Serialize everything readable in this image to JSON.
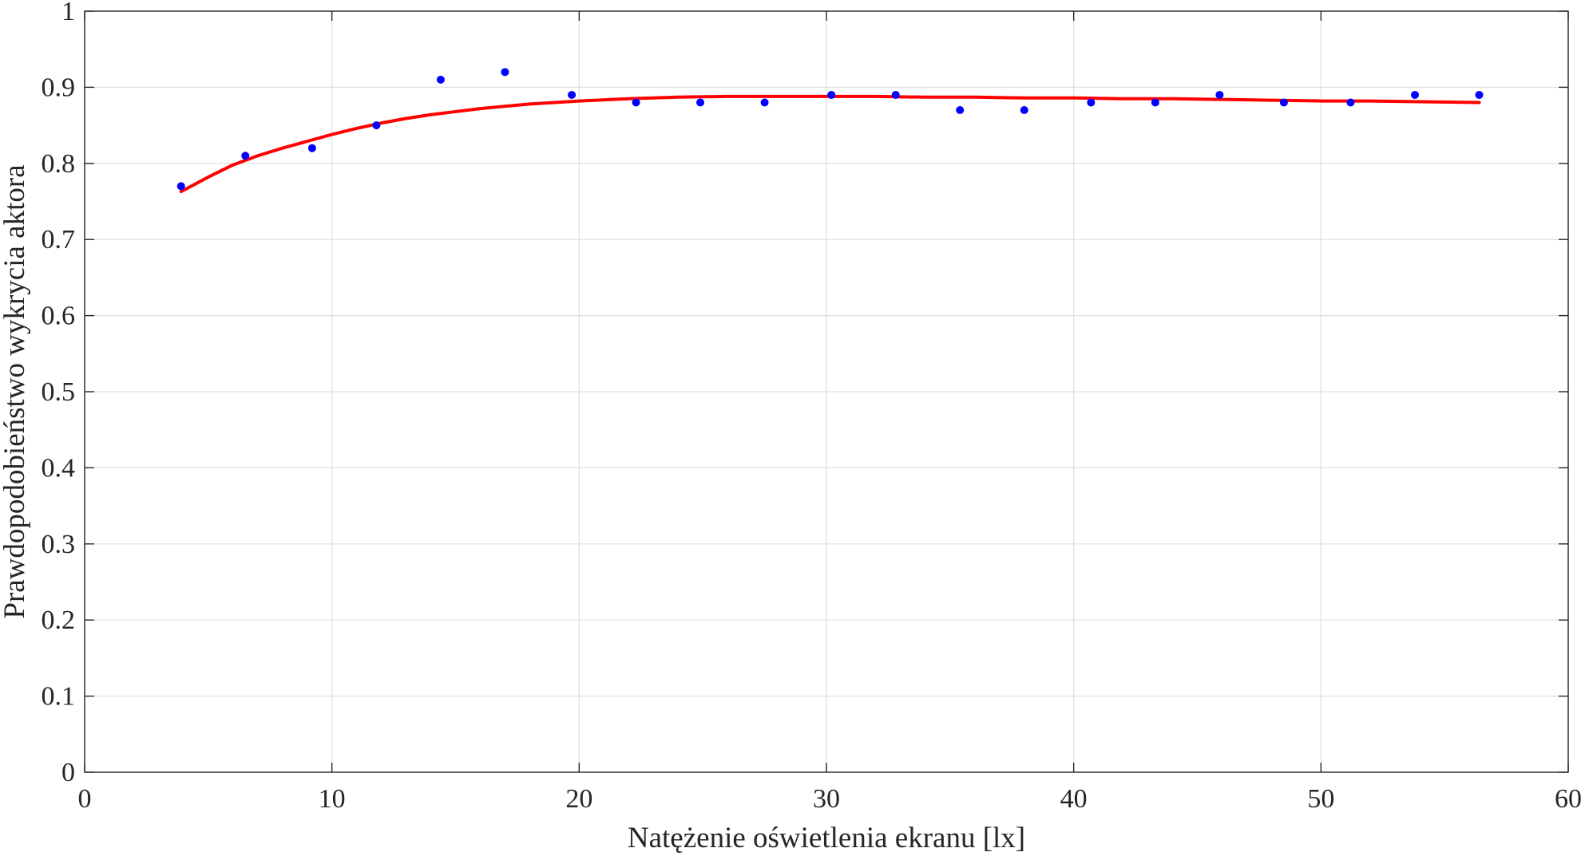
{
  "chart_data": {
    "type": "scatter",
    "title": "",
    "xlabel": "Natężenie oświetlenia ekranu [lx]",
    "ylabel": "Prawdopodobieństwo wykrycia aktora",
    "xlim": [
      0,
      60
    ],
    "ylim": [
      0,
      1
    ],
    "x_ticks": [
      "0",
      "10",
      "20",
      "30",
      "40",
      "50",
      "60"
    ],
    "y_ticks": [
      "0",
      "0.1",
      "0.2",
      "0.3",
      "0.4",
      "0.5",
      "0.6",
      "0.7",
      "0.8",
      "0.9",
      "1"
    ],
    "grid": true,
    "series": [
      {
        "kind": "points",
        "color": "#0000ff",
        "x": [
          3.9,
          6.5,
          9.2,
          11.8,
          14.4,
          17.0,
          19.7,
          22.3,
          24.9,
          27.5,
          30.2,
          32.8,
          35.4,
          38.0,
          40.7,
          43.3,
          45.9,
          48.5,
          51.2,
          53.8,
          56.4
        ],
        "y": [
          0.77,
          0.81,
          0.82,
          0.85,
          0.91,
          0.92,
          0.89,
          0.88,
          0.88,
          0.88,
          0.89,
          0.89,
          0.87,
          0.87,
          0.88,
          0.88,
          0.89,
          0.88,
          0.88,
          0.89,
          0.89
        ]
      },
      {
        "kind": "line",
        "color": "#ff0000",
        "x": [
          3.9,
          5,
          6,
          7,
          8,
          9,
          10,
          11,
          12,
          13,
          14,
          15,
          16,
          18,
          20,
          22,
          24,
          26,
          28,
          30,
          32,
          34,
          36,
          38,
          40,
          42,
          44,
          46,
          48,
          50,
          52,
          54,
          56.4
        ],
        "y": [
          0.763,
          0.782,
          0.798,
          0.81,
          0.82,
          0.829,
          0.838,
          0.846,
          0.853,
          0.859,
          0.864,
          0.868,
          0.872,
          0.878,
          0.882,
          0.885,
          0.887,
          0.888,
          0.888,
          0.888,
          0.888,
          0.887,
          0.887,
          0.886,
          0.886,
          0.885,
          0.885,
          0.884,
          0.883,
          0.882,
          0.882,
          0.881,
          0.88
        ]
      }
    ]
  }
}
